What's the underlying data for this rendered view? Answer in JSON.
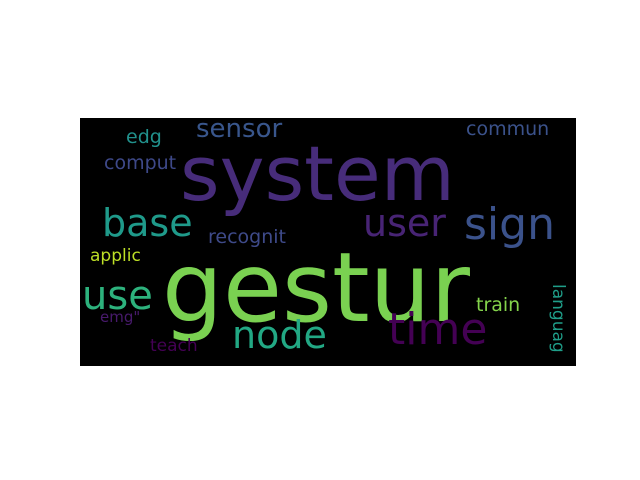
{
  "word_cloud": {
    "background": "#000000",
    "words": [
      {
        "text": "system",
        "color": "#472c7a"
      },
      {
        "text": "gestur",
        "color": "#7ad151"
      },
      {
        "text": "time",
        "color": "#440154"
      },
      {
        "text": "sign",
        "color": "#3b528b"
      },
      {
        "text": "user",
        "color": "#482475"
      },
      {
        "text": "node",
        "color": "#22a884"
      },
      {
        "text": "base",
        "color": "#1f9a8a"
      },
      {
        "text": "use",
        "color": "#2db27d"
      },
      {
        "text": "sensor",
        "color": "#39568c"
      },
      {
        "text": "recognit",
        "color": "#3e4a89"
      },
      {
        "text": "commun",
        "color": "#3b528b"
      },
      {
        "text": "edg",
        "color": "#21918c"
      },
      {
        "text": "comput",
        "color": "#3e4989"
      },
      {
        "text": "applic",
        "color": "#bddf26"
      },
      {
        "text": "emg\"",
        "color": "#481a6c"
      },
      {
        "text": "train",
        "color": "#84d44b"
      },
      {
        "text": "teach",
        "color": "#440154"
      },
      {
        "text": "languag",
        "color": "#1f9e89"
      }
    ]
  }
}
